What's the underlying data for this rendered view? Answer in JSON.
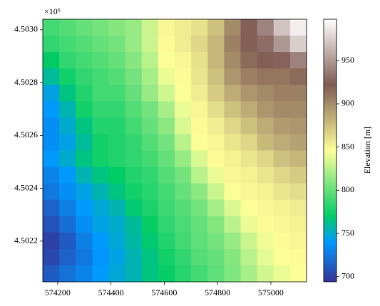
{
  "chart_data": {
    "type": "heatmap",
    "colormap": "terrain",
    "xlim": [
      574144,
      575134
    ],
    "ylim": [
      4502046,
      4503040
    ],
    "xticks": [
      574200,
      574400,
      574600,
      574800,
      575000
    ],
    "yticks": [
      {
        "value": 4502200,
        "label": "4.5022"
      },
      {
        "value": 4502400,
        "label": "4.5024"
      },
      {
        "value": 4502600,
        "label": "4.5026"
      },
      {
        "value": 4502800,
        "label": "4.5028"
      },
      {
        "value": 4503000,
        "label": "4.5030"
      }
    ],
    "y_offset_label": "×10⁶",
    "colorbar_label": "Elevation [m]",
    "clim": [
      694,
      998
    ],
    "cticks": [
      700,
      750,
      800,
      850,
      900,
      950
    ],
    "z": [
      [
        790,
        795,
        800,
        805,
        810,
        815,
        830,
        850,
        855,
        860,
        875,
        900,
        920,
        940,
        970,
        990
      ],
      [
        785,
        790,
        795,
        800,
        805,
        815,
        830,
        848,
        855,
        865,
        880,
        905,
        920,
        930,
        950,
        975
      ],
      [
        770,
        785,
        790,
        795,
        800,
        810,
        825,
        845,
        850,
        860,
        880,
        900,
        915,
        920,
        925,
        940
      ],
      [
        760,
        775,
        785,
        790,
        795,
        805,
        820,
        840,
        848,
        858,
        875,
        895,
        905,
        910,
        910,
        915
      ],
      [
        745,
        765,
        780,
        790,
        790,
        800,
        815,
        832,
        845,
        855,
        870,
        885,
        895,
        900,
        905,
        905
      ],
      [
        740,
        755,
        775,
        785,
        785,
        795,
        805,
        820,
        840,
        850,
        862,
        875,
        885,
        895,
        900,
        900
      ],
      [
        735,
        750,
        765,
        780,
        780,
        790,
        800,
        812,
        835,
        848,
        855,
        865,
        875,
        885,
        893,
        895
      ],
      [
        735,
        745,
        760,
        775,
        780,
        785,
        795,
        805,
        825,
        845,
        850,
        858,
        865,
        878,
        885,
        890
      ],
      [
        740,
        750,
        765,
        775,
        780,
        785,
        790,
        800,
        815,
        835,
        848,
        852,
        858,
        865,
        875,
        880
      ],
      [
        730,
        740,
        755,
        765,
        770,
        780,
        785,
        795,
        805,
        825,
        840,
        850,
        852,
        858,
        865,
        870
      ],
      [
        725,
        735,
        745,
        755,
        765,
        775,
        782,
        790,
        800,
        812,
        830,
        845,
        850,
        852,
        858,
        862
      ],
      [
        715,
        728,
        740,
        748,
        755,
        768,
        778,
        788,
        795,
        805,
        820,
        835,
        845,
        850,
        852,
        855
      ],
      [
        708,
        720,
        735,
        745,
        750,
        760,
        772,
        784,
        792,
        800,
        810,
        825,
        840,
        848,
        850,
        852
      ],
      [
        700,
        712,
        728,
        740,
        748,
        758,
        768,
        780,
        790,
        798,
        805,
        815,
        830,
        842,
        848,
        850
      ],
      [
        703,
        715,
        725,
        738,
        745,
        755,
        765,
        775,
        785,
        795,
        800,
        810,
        825,
        838,
        845,
        848
      ],
      [
        712,
        722,
        730,
        740,
        748,
        755,
        765,
        772,
        782,
        790,
        798,
        808,
        820,
        832,
        840,
        845
      ]
    ]
  }
}
